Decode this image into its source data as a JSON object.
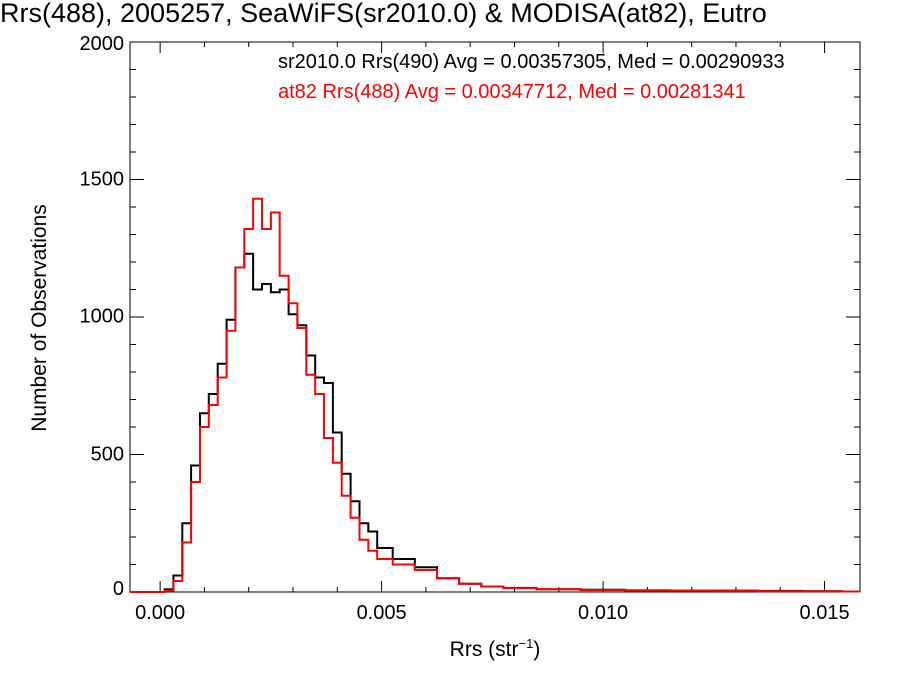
{
  "chart_data": {
    "type": "line",
    "title": "Rrs(488), 2005257, SeaWiFS(sr2010.0) & MODISA(at82), Eutro",
    "xlabel_main": "Rrs (str",
    "xlabel_sup": "−1",
    "xlabel_close": ")",
    "ylabel": "Number of Observations",
    "xlim": [
      -0.00068,
      0.0158
    ],
    "ylim": [
      0,
      2000
    ],
    "x_ticks": [
      "0.000",
      "0.005",
      "0.010",
      "0.015"
    ],
    "x_tick_values": [
      0.0,
      0.005,
      0.01,
      0.015
    ],
    "y_ticks": [
      "0",
      "500",
      "1000",
      "1500",
      "2000"
    ],
    "y_tick_values": [
      0,
      500,
      1000,
      1500,
      2000
    ],
    "grid": false,
    "legend_position": "top-right",
    "series": [
      {
        "name": "sr2010.0 Rrs(490) Avg = 0.00357305, Med = 0.00290933",
        "color": "#000000",
        "x": [
          -0.00068,
          0.0,
          0.0002,
          0.0004,
          0.0006,
          0.0008,
          0.001,
          0.0012,
          0.0014,
          0.0016,
          0.0018,
          0.002,
          0.0022,
          0.0024,
          0.0026,
          0.0028,
          0.003,
          0.0032,
          0.0034,
          0.0036,
          0.0038,
          0.004,
          0.0042,
          0.0044,
          0.0046,
          0.0048,
          0.005,
          0.0055,
          0.006,
          0.0065,
          0.007,
          0.0075,
          0.008,
          0.009,
          0.01,
          0.011,
          0.012,
          0.013,
          0.014,
          0.015,
          0.0158
        ],
        "y": [
          0,
          0,
          10,
          60,
          250,
          460,
          650,
          720,
          830,
          990,
          1180,
          1230,
          1100,
          1120,
          1090,
          1100,
          1010,
          970,
          860,
          780,
          760,
          580,
          430,
          330,
          250,
          220,
          160,
          120,
          90,
          50,
          30,
          20,
          15,
          10,
          8,
          6,
          5,
          5,
          4,
          3,
          2
        ]
      },
      {
        "name": "at82 Rrs(488) Avg = 0.00347712, Med = 0.00281341",
        "color": "#ff0000",
        "x": [
          -0.00068,
          0.0,
          0.0002,
          0.0004,
          0.0006,
          0.0008,
          0.001,
          0.0012,
          0.0014,
          0.0016,
          0.0018,
          0.002,
          0.0022,
          0.0024,
          0.0026,
          0.0028,
          0.003,
          0.0032,
          0.0034,
          0.0036,
          0.0038,
          0.004,
          0.0042,
          0.0044,
          0.0046,
          0.0048,
          0.005,
          0.0055,
          0.006,
          0.0065,
          0.007,
          0.0075,
          0.008,
          0.009,
          0.01,
          0.011,
          0.012,
          0.013,
          0.014,
          0.015,
          0.0158
        ],
        "y": [
          0,
          0,
          5,
          40,
          180,
          400,
          600,
          680,
          780,
          950,
          1180,
          1320,
          1430,
          1320,
          1380,
          1150,
          1050,
          960,
          790,
          720,
          560,
          470,
          350,
          270,
          190,
          150,
          120,
          100,
          80,
          50,
          30,
          20,
          14,
          10,
          7,
          6,
          5,
          4,
          3,
          3,
          2
        ]
      }
    ]
  }
}
